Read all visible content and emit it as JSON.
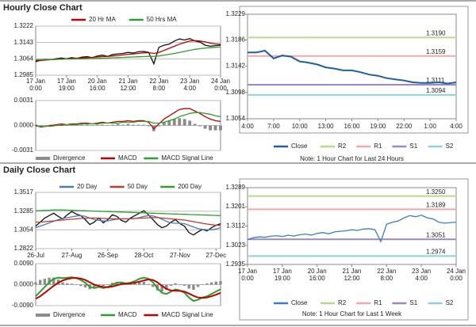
{
  "chart_data": [
    {
      "type": "line",
      "title": "Hourly Close Chart",
      "ylim": [
        1.2985,
        1.3222
      ],
      "yticks": [
        1.2985,
        1.3064,
        1.3143,
        1.3222
      ],
      "grid": true,
      "xlim": [
        0,
        36
      ],
      "xticks": [
        {
          "value": 0,
          "label": "17 Jan\n0:00"
        },
        {
          "value": 6,
          "label": "17 Jan\n19:00"
        },
        {
          "value": 12,
          "label": "20 Jan\n16:00"
        },
        {
          "value": 18,
          "label": "21 Jan\n12:00"
        },
        {
          "value": 24,
          "label": "22 Jan\n8:00"
        },
        {
          "value": 30,
          "label": "23 Jan\n4:00"
        },
        {
          "value": 36,
          "label": "24 Jan\n0:00"
        }
      ],
      "series": [
        {
          "color": "#111111",
          "values": [
            1.305,
            1.3058,
            1.3062,
            1.306,
            1.3065,
            1.3068,
            1.3064,
            1.307,
            1.3066,
            1.3072,
            1.3075,
            1.307,
            1.3078,
            1.3082,
            1.3076,
            1.3085,
            1.3088,
            1.309,
            1.3095,
            1.3092,
            1.3098,
            1.31,
            1.3095,
            1.304,
            1.312,
            1.313,
            1.3135,
            1.315,
            1.316,
            1.3155,
            1.3162,
            1.315,
            1.3145,
            1.313,
            1.3125,
            1.3128,
            1.313
          ]
        },
        {
          "name": "20 Hr MA",
          "color": "#c00000",
          "values": [
            1.3055,
            1.3056,
            1.3058,
            1.306,
            1.3061,
            1.3063,
            1.3064,
            1.3066,
            1.3067,
            1.3068,
            1.307,
            1.3071,
            1.3073,
            1.3075,
            1.3076,
            1.3078,
            1.308,
            1.3083,
            1.3086,
            1.3088,
            1.309,
            1.3093,
            1.3094,
            1.309,
            1.3095,
            1.3105,
            1.3115,
            1.3125,
            1.3135,
            1.3143,
            1.315,
            1.3152,
            1.315,
            1.3146,
            1.314,
            1.3136,
            1.3134
          ]
        },
        {
          "name": "50 Hrs MA",
          "color": "#2ca02c",
          "values": [
            1.306,
            1.306,
            1.3061,
            1.3061,
            1.3062,
            1.3062,
            1.3063,
            1.3063,
            1.3064,
            1.3064,
            1.3065,
            1.3066,
            1.3066,
            1.3067,
            1.3068,
            1.3069,
            1.307,
            1.3071,
            1.3072,
            1.3073,
            1.3074,
            1.3075,
            1.3076,
            1.3076,
            1.3078,
            1.3082,
            1.3086,
            1.309,
            1.3095,
            1.31,
            1.3105,
            1.311,
            1.3113,
            1.3116,
            1.3118,
            1.312,
            1.3121
          ]
        }
      ]
    },
    {
      "type": "line",
      "ylim": [
        -0.0031,
        0.0031
      ],
      "yticks": [
        -0.0031,
        {
          "value": 0,
          "label": "0.0000"
        },
        0.0031
      ],
      "grid": true,
      "xlim": [
        0,
        36
      ],
      "series": [
        {
          "name": "Divergence",
          "kind": "bar",
          "color": "#8c8c8c",
          "values": [
            0.0001,
            -0.0001,
            0.0,
            0.0001,
            0.0001,
            0.0002,
            0.0,
            0.0001,
            0.0001,
            0.0001,
            0.0001,
            0.0,
            0.0001,
            0.0001,
            0.0,
            0.0001,
            0.0002,
            0.0001,
            0.0002,
            0.0001,
            0.0001,
            0.0001,
            -0.0001,
            -0.0007,
            -0.0001,
            0.0004,
            0.0006,
            0.0008,
            0.0009,
            0.0008,
            0.0006,
            0.0002,
            -0.0001,
            -0.0004,
            -0.0006,
            -0.0006,
            -0.0006
          ]
        },
        {
          "name": "MACD",
          "color": "#c00000",
          "values": [
            0.0,
            -0.0002,
            -0.0001,
            0.0,
            0.0001,
            0.0002,
            0.0001,
            0.0002,
            0.0002,
            0.0003,
            0.0003,
            0.0002,
            0.0003,
            0.0004,
            0.0003,
            0.0004,
            0.0005,
            0.0005,
            0.0006,
            0.0005,
            0.0006,
            0.0006,
            0.0004,
            -0.0004,
            0.0002,
            0.0008,
            0.0012,
            0.0016,
            0.002,
            0.0021,
            0.0021,
            0.0018,
            0.0015,
            0.0011,
            0.0008,
            0.0006,
            0.0005
          ]
        },
        {
          "name": "MACD Signal Line",
          "color": "#2ca02c",
          "values": [
            -0.0001,
            -0.0001,
            -0.0001,
            -0.0001,
            0.0,
            0.0,
            0.0001,
            0.0001,
            0.0001,
            0.0002,
            0.0002,
            0.0002,
            0.0002,
            0.0003,
            0.0003,
            0.0003,
            0.0003,
            0.0004,
            0.0004,
            0.0004,
            0.0005,
            0.0005,
            0.0005,
            0.0003,
            0.0003,
            0.0004,
            0.0006,
            0.0008,
            0.0011,
            0.0013,
            0.0015,
            0.0016,
            0.0016,
            0.0015,
            0.0014,
            0.0012,
            0.0011
          ]
        }
      ]
    },
    {
      "type": "line",
      "note": "Note: 1 Hour Chart for Last 24 Hours",
      "ylim": [
        1.3054,
        1.3229
      ],
      "yticks": [
        1.3054,
        1.3098,
        1.3142,
        1.3186,
        1.3229
      ],
      "grid": false,
      "xlim": [
        0,
        24
      ],
      "xticks": [
        {
          "value": 0,
          "label": "4:00"
        },
        {
          "value": 3,
          "label": "7:00"
        },
        {
          "value": 6,
          "label": "10:00"
        },
        {
          "value": 9,
          "label": "13:00"
        },
        {
          "value": 12,
          "label": "16:00"
        },
        {
          "value": 15,
          "label": "19:00"
        },
        {
          "value": 18,
          "label": "22:00"
        },
        {
          "value": 21,
          "label": "1:00"
        },
        {
          "value": 24,
          "label": "4:00"
        }
      ],
      "series": [
        {
          "name": "Close",
          "color": "#1f5fa0",
          "width": 2,
          "values": [
            1.3165,
            1.3165,
            1.3168,
            1.3155,
            1.316,
            1.3158,
            1.315,
            1.3148,
            1.3145,
            1.314,
            1.3138,
            1.3135,
            1.3135,
            1.3132,
            1.3128,
            1.3126,
            1.3122,
            1.312,
            1.3118,
            1.3115,
            1.3114,
            1.3114,
            1.3115,
            1.3113,
            1.3115
          ]
        }
      ],
      "levels": [
        {
          "name": "R2",
          "color": "#b8d98c",
          "value": 1.319,
          "value_label": "1.3190"
        },
        {
          "name": "R1",
          "color": "#f0a8a8",
          "value": 1.3159,
          "value_label": "1.3159"
        },
        {
          "name": "S1",
          "color": "#9b88c4",
          "value": 1.3111,
          "value_label": "1.3111"
        },
        {
          "name": "S2",
          "color": "#8fd0e0",
          "value": 1.3094,
          "value_label": "1.3094"
        }
      ]
    },
    {
      "type": "line",
      "title": "Daily Close Chart",
      "ylim": [
        1.2822,
        1.3517
      ],
      "yticks": [
        1.2822,
        1.3054,
        1.3285,
        1.3517
      ],
      "grid": true,
      "xlim": [
        0,
        41
      ],
      "xticks": [
        {
          "value": 0,
          "label": "26-Jul"
        },
        {
          "value": 8,
          "label": "27-Aug"
        },
        {
          "value": 16,
          "label": "26-Sep"
        },
        {
          "value": 24,
          "label": "28-Oct"
        },
        {
          "value": 32,
          "label": "27-Nov"
        },
        {
          "value": 40,
          "label": "27-Dec"
        }
      ],
      "series": [
        {
          "color": "#111111",
          "values": [
            1.31,
            1.315,
            1.32,
            1.323,
            1.326,
            1.322,
            1.319,
            1.324,
            1.328,
            1.325,
            1.323,
            1.318,
            1.312,
            1.315,
            1.32,
            1.314,
            1.318,
            1.324,
            1.322,
            1.317,
            1.315,
            1.32,
            1.323,
            1.326,
            1.329,
            1.324,
            1.318,
            1.312,
            1.308,
            1.31,
            1.315,
            1.318,
            1.313,
            1.31,
            1.302,
            1.299,
            1.303,
            1.306,
            1.304,
            1.308,
            1.311,
            1.313
          ]
        },
        {
          "name": "20 Day",
          "color": "#4a7ebb",
          "values": [
            1.308,
            1.31,
            1.312,
            1.314,
            1.316,
            1.318,
            1.3195,
            1.3205,
            1.3215,
            1.3225,
            1.323,
            1.322,
            1.32,
            1.318,
            1.317,
            1.3165,
            1.3165,
            1.3175,
            1.3185,
            1.319,
            1.319,
            1.319,
            1.3195,
            1.3205,
            1.322,
            1.323,
            1.3225,
            1.321,
            1.3185,
            1.316,
            1.314,
            1.3135,
            1.3135,
            1.313,
            1.311,
            1.309,
            1.307,
            1.306,
            1.3055,
            1.3055,
            1.3065,
            1.308
          ]
        },
        {
          "name": "50 Day",
          "color": "#c0392b",
          "values": [
            1.315,
            1.315,
            1.3155,
            1.316,
            1.3165,
            1.317,
            1.3175,
            1.318,
            1.3185,
            1.319,
            1.3195,
            1.3198,
            1.32,
            1.32,
            1.3198,
            1.3195,
            1.3192,
            1.319,
            1.319,
            1.319,
            1.319,
            1.3192,
            1.3195,
            1.3198,
            1.32,
            1.3203,
            1.3205,
            1.3205,
            1.32,
            1.3195,
            1.319,
            1.3185,
            1.318,
            1.3175,
            1.3165,
            1.3155,
            1.3145,
            1.3135,
            1.3125,
            1.3118,
            1.3112,
            1.3108
          ]
        },
        {
          "name": "200 Day",
          "color": "#2ca02c",
          "values": [
            1.329,
            1.3292,
            1.3295,
            1.3297,
            1.33,
            1.33,
            1.33,
            1.3298,
            1.3296,
            1.3294,
            1.3292,
            1.329,
            1.3288,
            1.3286,
            1.3284,
            1.3282,
            1.328,
            1.3278,
            1.3276,
            1.3274,
            1.3272,
            1.327,
            1.3268,
            1.3266,
            1.3264,
            1.3262,
            1.326,
            1.3258,
            1.3256,
            1.3254,
            1.3252,
            1.325,
            1.3248,
            1.3246,
            1.3244,
            1.3242,
            1.324,
            1.3238,
            1.3236,
            1.3234,
            1.3232,
            1.323
          ]
        }
      ]
    },
    {
      "type": "line",
      "ylim": [
        -0.009,
        0.009
      ],
      "yticks": [
        {
          "value": -0.009,
          "label": "-0.0090"
        },
        {
          "value": 0,
          "label": "0.0000"
        },
        {
          "value": 0.009,
          "label": "0.0090"
        }
      ],
      "grid": true,
      "xlim": [
        0,
        41
      ],
      "series": [
        {
          "name": "Divergence",
          "kind": "bar",
          "color": "#8c8c8c",
          "values": [
            0.001,
            0.002,
            0.0025,
            0.003,
            0.003,
            0.0022,
            0.001,
            0.0006,
            0.0004,
            -0.0001,
            -0.0006,
            -0.0012,
            -0.002,
            -0.0015,
            -0.0004,
            -0.0005,
            0.0001,
            0.0008,
            0.0011,
            0.0008,
            0.0001,
            0.0003,
            0.0007,
            0.0012,
            0.0012,
            0.0003,
            -0.001,
            -0.0025,
            -0.003,
            -0.0022,
            -0.0005,
            0.0006,
            0.0002,
            -0.0005,
            -0.0017,
            -0.0022,
            -0.001,
            0.0002,
            0.0005,
            0.001,
            0.0013,
            0.0015
          ]
        },
        {
          "name": "MACD",
          "color": "#2ca02c",
          "width": 2,
          "values": [
            -0.005,
            -0.003,
            -0.001,
            0.001,
            0.0025,
            0.003,
            0.0028,
            0.003,
            0.0032,
            0.0028,
            0.002,
            0.0008,
            -0.001,
            -0.0015,
            -0.001,
            -0.0015,
            -0.001,
            0.0,
            0.0008,
            0.001,
            0.0005,
            0.0008,
            0.0015,
            0.0025,
            0.003,
            0.0025,
            0.001,
            -0.0015,
            -0.0035,
            -0.004,
            -0.003,
            -0.002,
            -0.0025,
            -0.0035,
            -0.0055,
            -0.007,
            -0.0065,
            -0.0055,
            -0.005,
            -0.004,
            -0.003,
            -0.002
          ]
        },
        {
          "name": "MACD Signal Line",
          "color": "#c00000",
          "width": 2,
          "values": [
            -0.006,
            -0.005,
            -0.0035,
            -0.002,
            -0.0005,
            0.0008,
            0.0018,
            0.0024,
            0.0028,
            0.0029,
            0.0026,
            0.002,
            0.001,
            0.0,
            -0.0006,
            -0.001,
            -0.0011,
            -0.0008,
            -0.0003,
            0.0002,
            0.0004,
            0.0005,
            0.0008,
            0.0013,
            0.0018,
            0.0022,
            0.002,
            0.001,
            -0.0005,
            -0.0018,
            -0.0025,
            -0.0026,
            -0.0027,
            -0.003,
            -0.0038,
            -0.0048,
            -0.0055,
            -0.0057,
            -0.0055,
            -0.005,
            -0.0043,
            -0.0035
          ]
        }
      ]
    },
    {
      "type": "line",
      "note": "Note: 1 Hour Chart for Last 1 Week",
      "ylim": [
        1.2935,
        1.3289
      ],
      "yticks": [
        1.2935,
        1.3023,
        1.3112,
        1.3201,
        1.3289
      ],
      "grid": false,
      "xlim": [
        0,
        36
      ],
      "xticks": [
        {
          "value": 0,
          "label": "17 Jan\n0:00"
        },
        {
          "value": 6,
          "label": "17 Jan\n19:00"
        },
        {
          "value": 12,
          "label": "20 Jan\n16:00"
        },
        {
          "value": 18,
          "label": "21 Jan\n12:00"
        },
        {
          "value": 24,
          "label": "22 Jan\n8:00"
        },
        {
          "value": 30,
          "label": "23 Jan\n4:00"
        },
        {
          "value": 36,
          "label": "24 Jan\n0:00"
        }
      ],
      "series": [
        {
          "name": "Close",
          "color": "#3a7fc1",
          "values": [
            1.305,
            1.3058,
            1.3062,
            1.306,
            1.3065,
            1.3068,
            1.3064,
            1.307,
            1.3066,
            1.3072,
            1.3075,
            1.307,
            1.3078,
            1.3082,
            1.3076,
            1.3085,
            1.3088,
            1.309,
            1.3095,
            1.3092,
            1.3098,
            1.31,
            1.3095,
            1.304,
            1.312,
            1.313,
            1.3135,
            1.315,
            1.316,
            1.3155,
            1.3162,
            1.315,
            1.3145,
            1.313,
            1.3125,
            1.3128,
            1.313
          ]
        }
      ],
      "levels": [
        {
          "name": "R2",
          "color": "#b8d98c",
          "value": 1.325,
          "value_label": "1.3250"
        },
        {
          "name": "R1",
          "color": "#f0a8a8",
          "value": 1.3189,
          "value_label": "1.3189"
        },
        {
          "name": "S1",
          "color": "#9b88c4",
          "value": 1.3051,
          "value_label": "1.3051"
        },
        {
          "name": "S2",
          "color": "#8fd0e0",
          "value": 1.2974,
          "value_label": "1.2974"
        }
      ]
    }
  ]
}
